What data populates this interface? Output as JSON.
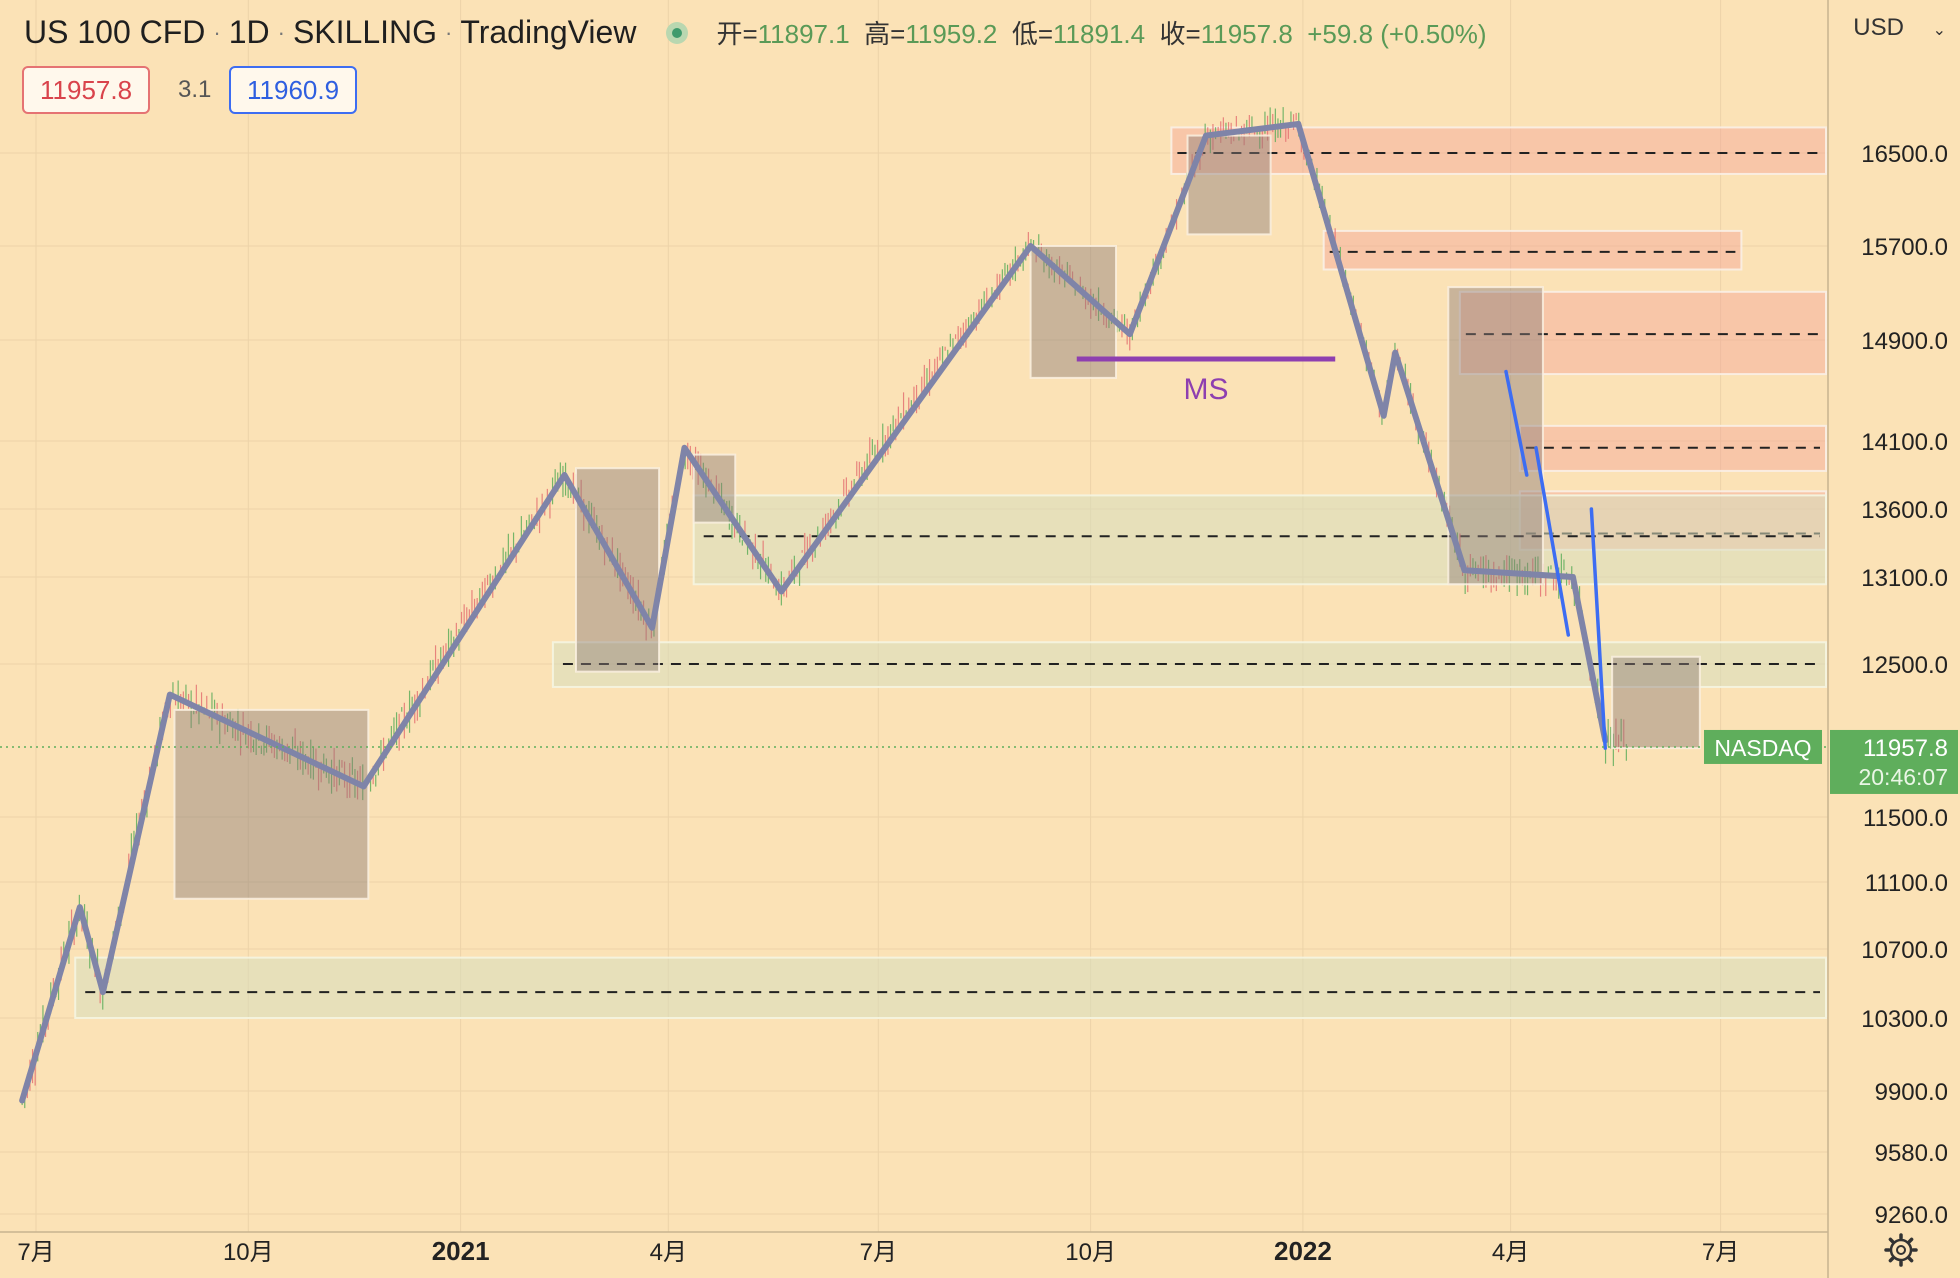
{
  "header": {
    "symbol": "US 100 CFD",
    "interval": "1D",
    "author": "SKILLING",
    "platform": "TradingView",
    "ohlc": {
      "open_label": "开=",
      "open": "11897.1",
      "high_label": "高=",
      "high": "11959.2",
      "low_label": "低=",
      "low": "11891.4",
      "close_label": "收=",
      "close": "11957.8",
      "change": "+59.8 (+0.50%)"
    },
    "bid": "11957.8",
    "spread": "3.1",
    "ask": "11960.9",
    "currency": "USD"
  },
  "colors": {
    "background": "#fbe2b6",
    "up": "#5fae5c",
    "down": "#e57373",
    "trend": "#7f84a8",
    "blue": "#3d6df2",
    "ms": "#8e3fb0",
    "price_tag": "#5fae5c"
  },
  "chart_data": {
    "type": "candlestick-annotated",
    "y_ticks": [
      "16500.0",
      "15700.0",
      "14900.0",
      "14100.0",
      "13600.0",
      "13100.0",
      "12500.0",
      "11500.0",
      "11100.0",
      "10700.0",
      "10300.0",
      "9900.0",
      "9580.0",
      "9260.0"
    ],
    "x_ticks": [
      "7月",
      "10月",
      "2021",
      "4月",
      "7月",
      "10月",
      "2022",
      "4月",
      "7月"
    ],
    "last_price": "11957.8",
    "countdown": "20:46:07",
    "price_label": "NASDAQ",
    "annotation": "MS",
    "polyline": [
      [
        "2020-06-25",
        9850
      ],
      [
        "2020-07-20",
        10950
      ],
      [
        "2020-07-30",
        10450
      ],
      [
        "2020-08-28",
        12300
      ],
      [
        "2020-11-20",
        11700
      ],
      [
        "2021-02-15",
        13850
      ],
      [
        "2021-03-25",
        12750
      ],
      [
        "2021-04-08",
        14050
      ],
      [
        "2021-05-20",
        13000
      ],
      [
        "2021-09-05",
        15700
      ],
      [
        "2021-10-18",
        14950
      ],
      [
        "2021-11-20",
        16650
      ],
      [
        "2021-12-30",
        16750
      ],
      [
        "2022-02-05",
        14300
      ],
      [
        "2022-02-10",
        14800
      ],
      [
        "2022-03-12",
        13150
      ],
      [
        "2022-04-28",
        13100
      ],
      [
        "2022-05-12",
        12000
      ]
    ],
    "blue_segments": [
      [
        [
          "2022-03-30",
          14650
        ],
        [
          "2022-04-08",
          13850
        ]
      ],
      [
        [
          "2022-04-12",
          14050
        ],
        [
          "2022-04-26",
          12700
        ]
      ],
      [
        [
          "2022-05-06",
          13600
        ],
        [
          "2022-05-12",
          11950
        ]
      ]
    ],
    "ms_line": {
      "x0": "2021-09-25",
      "x1": "2022-01-15",
      "y": 14750
    },
    "range_boxes": [
      {
        "x0": "2020-08-30",
        "x1": "2020-11-22",
        "y0": 11000,
        "y1": 12200
      },
      {
        "x0": "2021-02-20",
        "x1": "2021-03-28",
        "y0": 12450,
        "y1": 13900
      },
      {
        "x0": "2021-04-12",
        "x1": "2021-04-30",
        "y0": 13500,
        "y1": 14000
      },
      {
        "x0": "2021-09-05",
        "x1": "2021-10-12",
        "y0": 14600,
        "y1": 15700
      },
      {
        "x0": "2021-11-12",
        "x1": "2021-12-18",
        "y0": 15800,
        "y1": 16650
      },
      {
        "x0": "2022-03-05",
        "x1": "2022-04-15",
        "y0": 13050,
        "y1": 15350
      },
      {
        "x0": "2022-05-15",
        "x1": "2022-06-22",
        "y0": 11950,
        "y1": 12550
      }
    ],
    "supply_zones": [
      {
        "x0": "2021-11-05",
        "y0": 16320,
        "y1": 16720,
        "level": 16500
      },
      {
        "x0": "2022-01-10",
        "y0": 15500,
        "y1": 15830,
        "level": 15650,
        "x1": "2022-07-10"
      },
      {
        "x0": "2022-03-10",
        "y0": 14630,
        "y1": 15310,
        "level": 14950
      },
      {
        "x0": "2022-04-05",
        "y0": 13880,
        "y1": 14220,
        "level": 14050
      },
      {
        "x0": "2022-04-05",
        "y0": 13300,
        "y1": 13730,
        "level": 13420
      }
    ],
    "demand_zones": [
      {
        "x0": "2021-04-12",
        "y0": 13050,
        "y1": 13700,
        "level": 13400
      },
      {
        "x0": "2021-02-10",
        "y0": 12350,
        "y1": 12650,
        "level": 12500
      },
      {
        "x0": "2020-07-18",
        "y0": 10300,
        "y1": 10650,
        "level": 10450
      }
    ]
  }
}
